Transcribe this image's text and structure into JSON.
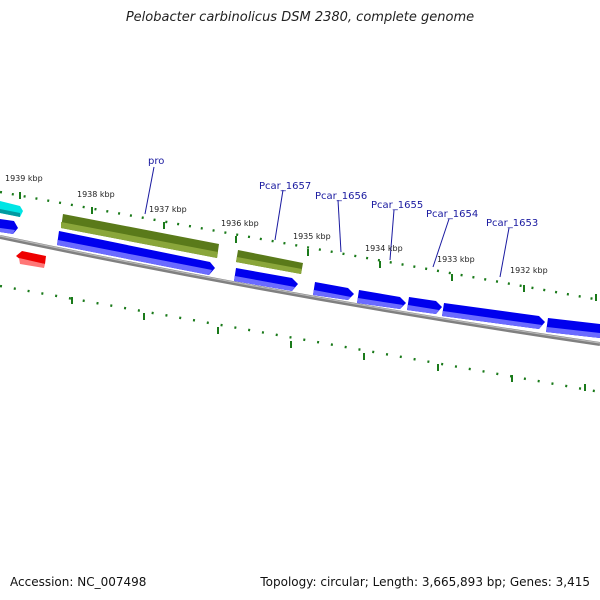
{
  "title": "Pelobacter carbinolicus DSM 2380, complete genome",
  "footer": {
    "accession": "Accession: NC_007498",
    "summary": "Topology: circular; Length: 3,665,893 bp; Genes: 3,415"
  },
  "colors": {
    "cds": "#0000ee",
    "gene": "#5a7a1a",
    "rna": "#00e5e5",
    "other": "#ee0000",
    "tick": "#1a7a1a",
    "backbone": "#808080",
    "label": "#1a1aa0"
  },
  "ruler": {
    "ticks": [
      {
        "label": "1939 kbp"
      },
      {
        "label": "1938 kbp"
      },
      {
        "label": "1937 kbp"
      },
      {
        "label": "1936 kbp"
      },
      {
        "label": "1935 kbp"
      },
      {
        "label": "1934 kbp"
      },
      {
        "label": "1933 kbp"
      },
      {
        "label": "1932 kbp"
      }
    ]
  },
  "gene_labels": [
    {
      "label": "pro"
    },
    {
      "label": "Pcar_1657"
    },
    {
      "label": "Pcar_1656"
    },
    {
      "label": "Pcar_1655"
    },
    {
      "label": "Pcar_1654"
    },
    {
      "label": "Pcar_1653"
    }
  ]
}
